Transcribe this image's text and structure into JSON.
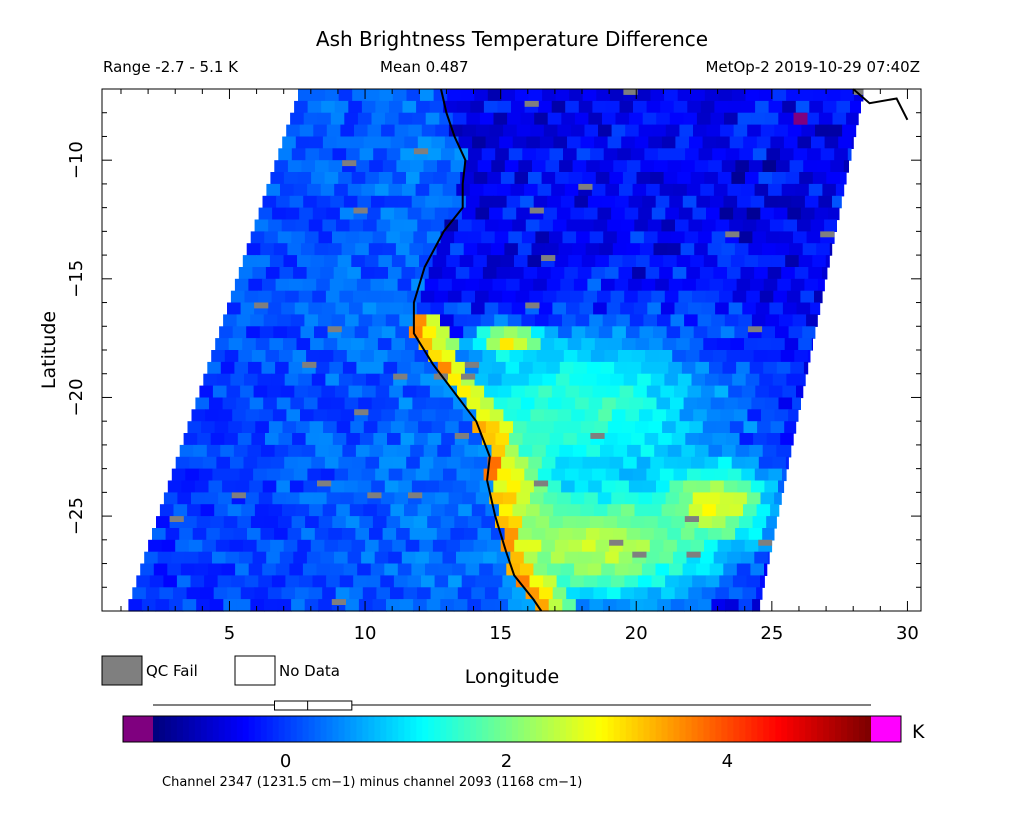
{
  "chart_data": {
    "type": "heatmap",
    "title": "Ash Brightness Temperature Difference",
    "range_text": "Range -2.7 - 5.1 K",
    "mean_text": "Mean 0.487",
    "instrument_text": "MetOp-2 2019-10-29 07:40Z",
    "xlabel": "Longitude",
    "ylabel": "Latitude",
    "xlim": [
      0.3,
      30.5
    ],
    "ylim": [
      -29,
      -7
    ],
    "x_ticks": [
      5,
      10,
      15,
      20,
      25,
      30
    ],
    "x_tick_labels": [
      "5",
      "10",
      "15",
      "20",
      "25",
      "30"
    ],
    "y_ticks": [
      -10,
      -15,
      -20,
      -25
    ],
    "y_tick_labels": [
      "−10",
      "−15",
      "−20",
      "−25"
    ],
    "legend": [
      {
        "label": "QC Fail",
        "color": "#7f7f7f"
      },
      {
        "label": "No Data",
        "color": "#ffffff"
      }
    ],
    "colorbar": {
      "min": -1.2,
      "max": 5.3,
      "ticks": [
        0,
        2,
        4
      ],
      "tick_labels": [
        "0",
        "2",
        "4"
      ],
      "unit": "K",
      "under_color": "#7f007f",
      "over_color": "#ff00ff",
      "mean_box": {
        "q1": -0.1,
        "median": 0.2,
        "q3": 0.6,
        "whisker_low": -1.2,
        "whisker_high": 5.3
      },
      "caption": "Channel 2347 (1231.5 cm−1) minus channel 2093 (1168 cm−1)"
    },
    "swath": {
      "lon_left_at_top": 7.6,
      "lon_left_at_bottom": 1.2,
      "lon_right_at_top": 28.4,
      "lon_right_at_bottom": 24.5
    },
    "coastline": [
      [
        12.8,
        -7.0
      ],
      [
        13.0,
        -8.0
      ],
      [
        13.3,
        -9.0
      ],
      [
        13.7,
        -10.0
      ],
      [
        13.6,
        -11.0
      ],
      [
        13.6,
        -12.0
      ],
      [
        12.9,
        -13.0
      ],
      [
        12.2,
        -14.5
      ],
      [
        11.8,
        -16.0
      ],
      [
        11.8,
        -17.3
      ],
      [
        12.5,
        -18.6
      ],
      [
        13.3,
        -19.8
      ],
      [
        14.1,
        -21.0
      ],
      [
        14.6,
        -22.5
      ],
      [
        14.5,
        -23.5
      ],
      [
        14.8,
        -25.0
      ],
      [
        15.2,
        -26.5
      ],
      [
        15.5,
        -27.5
      ],
      [
        16.2,
        -28.5
      ],
      [
        16.5,
        -29.0
      ]
    ],
    "coastline_ne": [
      [
        28.0,
        -7.0
      ],
      [
        28.6,
        -7.6
      ],
      [
        29.6,
        -7.4
      ],
      [
        30.0,
        -8.3
      ]
    ],
    "features": [
      {
        "lon": 15.3,
        "lat": -17.6,
        "rx": 1.1,
        "ry": 0.5,
        "value": 4.6
      },
      {
        "lon": 15.4,
        "lat": -23.8,
        "rx": 1.2,
        "ry": 2.2,
        "value": 4.2
      },
      {
        "lon": 18.5,
        "lat": -26.2,
        "rx": 4.5,
        "ry": 2.5,
        "value": 2.6
      },
      {
        "lon": 18.0,
        "lat": -20.5,
        "rx": 5.5,
        "ry": 3.5,
        "value": 1.6
      },
      {
        "lon": 23.0,
        "lat": -24.5,
        "rx": 2.0,
        "ry": 1.5,
        "value": 2.8
      }
    ]
  }
}
